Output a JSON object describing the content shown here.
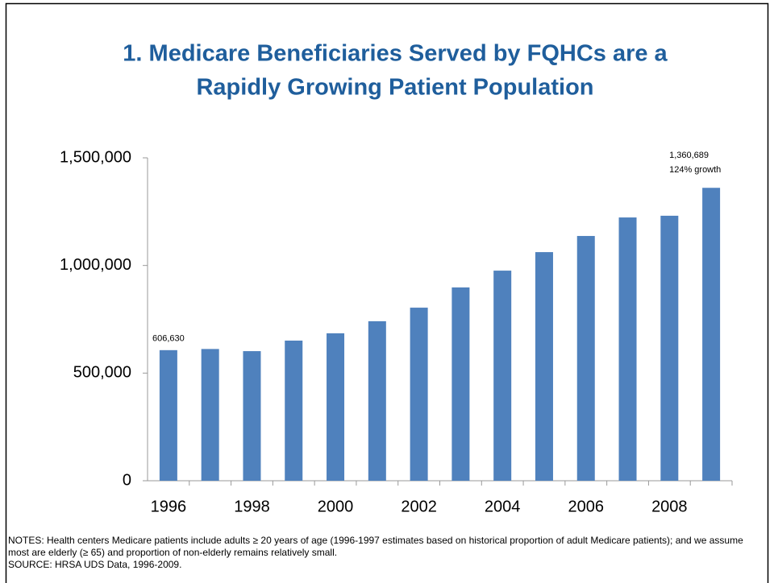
{
  "chart_data": {
    "type": "bar",
    "title": [
      "1. Medicare Beneficiaries Served by FQHCs are a",
      "Rapidly Growing Patient Population"
    ],
    "categories": [
      "1996",
      null,
      "1998",
      null,
      "2000",
      null,
      "2002",
      null,
      "2004",
      null,
      "2006",
      null,
      "2008",
      null
    ],
    "values": [
      606630,
      612000,
      602000,
      651000,
      685000,
      741000,
      804000,
      898000,
      976000,
      1062000,
      1137000,
      1223000,
      1231000,
      1360689
    ],
    "value_labels": [
      "606,630",
      null,
      null,
      null,
      null,
      null,
      null,
      null,
      null,
      null,
      null,
      null,
      null,
      "1,360,689"
    ],
    "annotations": [
      "124% growth"
    ],
    "color": "#4f81bd",
    "ylim": [
      0,
      1500000
    ],
    "yticks": [
      0,
      {
        "value": 500000,
        "label": "500,000"
      },
      {
        "value": 1000000,
        "label": "1,000,000"
      },
      {
        "value": 1500000,
        "label": "1,500,000"
      }
    ],
    "grid": false,
    "notes": "NOTES: Health centers Medicare patients include adults ≥ 20 years of age (1996-1997 estimates based on historical proportion of adult Medicare patients); and we assume most are elderly (≥ 65) and proportion of non-elderly remains relatively small.",
    "source": "SOURCE: HRSA UDS Data, 1996-2009."
  }
}
